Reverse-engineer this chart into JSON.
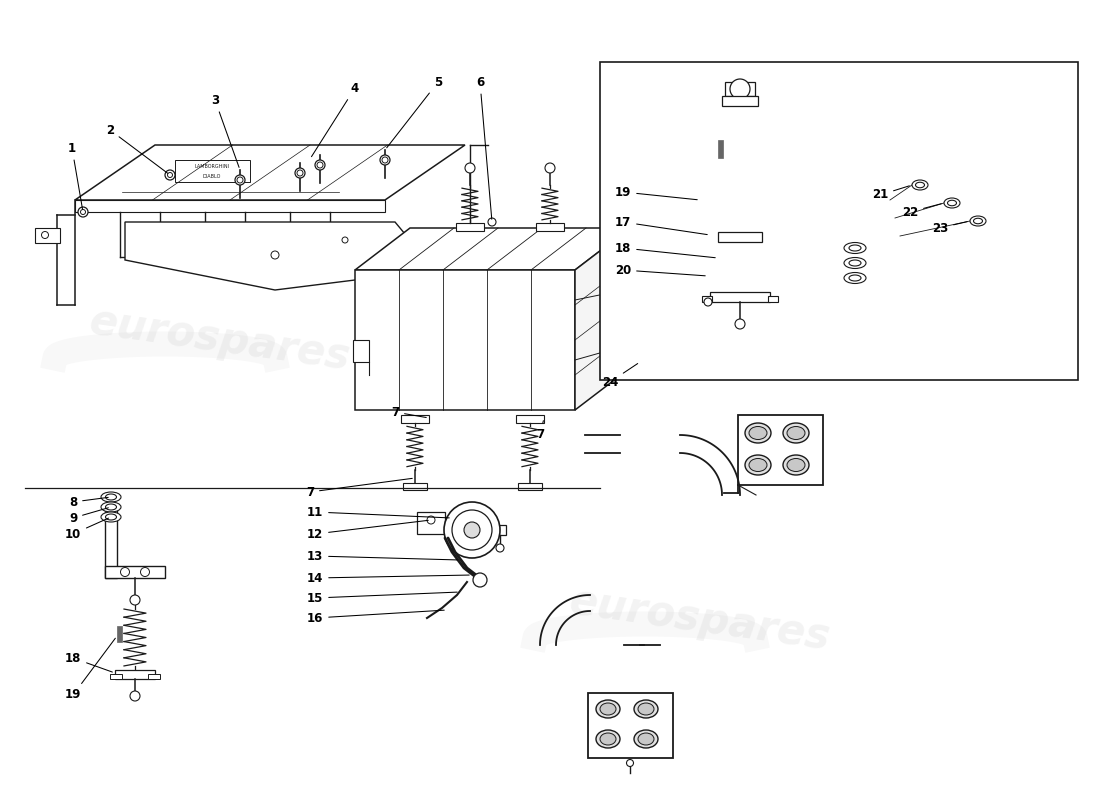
{
  "bg_color": "#ffffff",
  "lc": "#1a1a1a",
  "watermark": "eurospares",
  "wm_color": "#bbbbbb",
  "wm_alpha": 0.18
}
